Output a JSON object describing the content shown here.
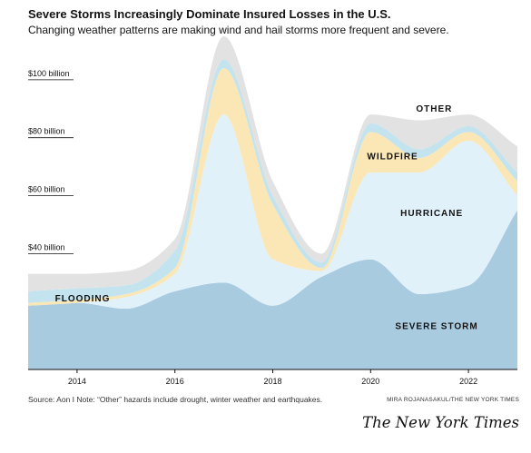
{
  "header": {
    "title": "Severe Storms Increasingly Dominate Insured Losses in the U.S.",
    "subtitle": "Changing weather patterns are making wind and hail storms more frequent and severe."
  },
  "chart_data": {
    "type": "area",
    "title": "Severe Storms Increasingly Dominate Insured Losses in the U.S.",
    "subtitle": "Changing weather patterns are making wind and hail storms more frequent and severe.",
    "xlabel": "",
    "ylabel": "",
    "x": [
      2013,
      2014,
      2015,
      2016,
      2017,
      2018,
      2019,
      2020,
      2021,
      2022,
      2023
    ],
    "xticks": [
      2014,
      2016,
      2018,
      2020,
      2022
    ],
    "xtick_labels": [
      "2014",
      "2016",
      "2018",
      "2020",
      "2022"
    ],
    "yticks": [
      40,
      60,
      80,
      100
    ],
    "ytick_labels": [
      "$40 billion",
      "$60 billion",
      "$80 billion",
      "$100 billion"
    ],
    "ylim": [
      0,
      115
    ],
    "xlim": [
      2013,
      2023
    ],
    "grid": false,
    "legend": "none",
    "series": [
      {
        "name": "SEVERE STORM",
        "color": "#a9cbe0",
        "values": [
          22,
          23,
          21,
          27,
          30,
          22,
          32,
          38,
          26,
          29,
          55
        ]
      },
      {
        "name": "HURRICANE",
        "color": "#e1f1fa",
        "values": [
          0,
          0,
          4,
          6,
          58,
          16,
          2,
          30,
          42,
          50,
          5
        ]
      },
      {
        "name": "WILDFIRE",
        "color": "#fbe7b5",
        "values": [
          1,
          1,
          1,
          2,
          16,
          19,
          1,
          14,
          5,
          3,
          5
        ]
      },
      {
        "name": "FLOODING",
        "color": "#c3e4ee",
        "values": [
          4,
          4,
          3,
          6,
          3,
          3,
          2,
          3,
          3,
          2,
          3
        ]
      },
      {
        "name": "OTHER",
        "color": "#e2e2e2",
        "values": [
          6,
          5,
          5,
          4,
          8,
          5,
          3,
          3,
          10,
          4,
          9
        ]
      }
    ],
    "source": "Source: Aon I Note: “Other” hazards include drought, winter weather and earthquakes.",
    "credit": "MIRA ROJANASAKUL/THE NEW YORK TIMES"
  },
  "footer": {
    "logo": "The New York Times"
  }
}
